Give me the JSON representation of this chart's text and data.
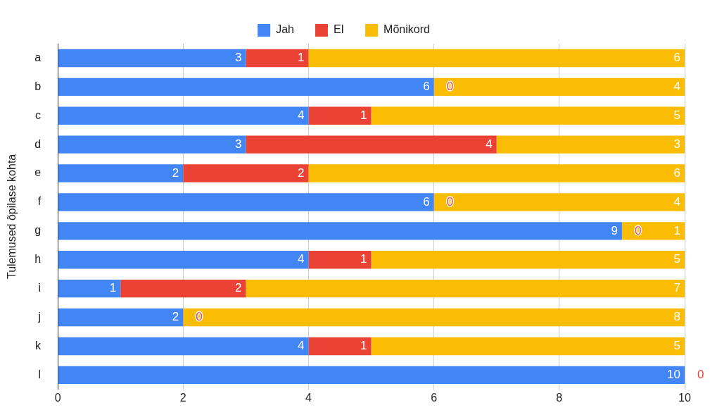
{
  "chart_data": {
    "type": "bar",
    "orientation": "horizontal",
    "stacked": true,
    "ylabel": "Tulemused õpilase kohta",
    "categories": [
      "a",
      "b",
      "c",
      "d",
      "e",
      "f",
      "g",
      "h",
      "i",
      "j",
      "k",
      "l"
    ],
    "series": [
      {
        "name": "Jah",
        "color": "#4285f4",
        "values": [
          3,
          6,
          4,
          3,
          2,
          6,
          9,
          4,
          1,
          2,
          4,
          10
        ]
      },
      {
        "name": "EI",
        "color": "#ea4335",
        "values": [
          1,
          0,
          1,
          4,
          2,
          0,
          0,
          1,
          2,
          0,
          1,
          0
        ],
        "value_labels": [
          "1",
          null,
          "1",
          "4",
          "2",
          null,
          null,
          "1",
          "2",
          null,
          "1",
          null
        ]
      },
      {
        "name": "Mõnikord",
        "color": "#fbbc04",
        "values": [
          6,
          4,
          5,
          3,
          6,
          4,
          1,
          5,
          7,
          8,
          5,
          0
        ],
        "value_labels": [
          "6",
          "4",
          "5",
          "3",
          "6",
          "4",
          "1",
          "5",
          "7",
          "8",
          "5",
          null
        ]
      }
    ],
    "annotations": [
      {
        "text": "0",
        "x": 6,
        "y": "b"
      },
      {
        "text": "0",
        "x": 6,
        "y": "f"
      },
      {
        "text": "0",
        "x": 9,
        "y": "g"
      },
      {
        "text": "0",
        "x": 2,
        "y": "j"
      },
      {
        "text": "0",
        "x": 10,
        "y": "l"
      }
    ],
    "data_labels": true,
    "xlim": [
      0,
      10
    ],
    "xticks": [
      0,
      2,
      4,
      6,
      8,
      10
    ],
    "grid": "x",
    "legend": "top"
  }
}
